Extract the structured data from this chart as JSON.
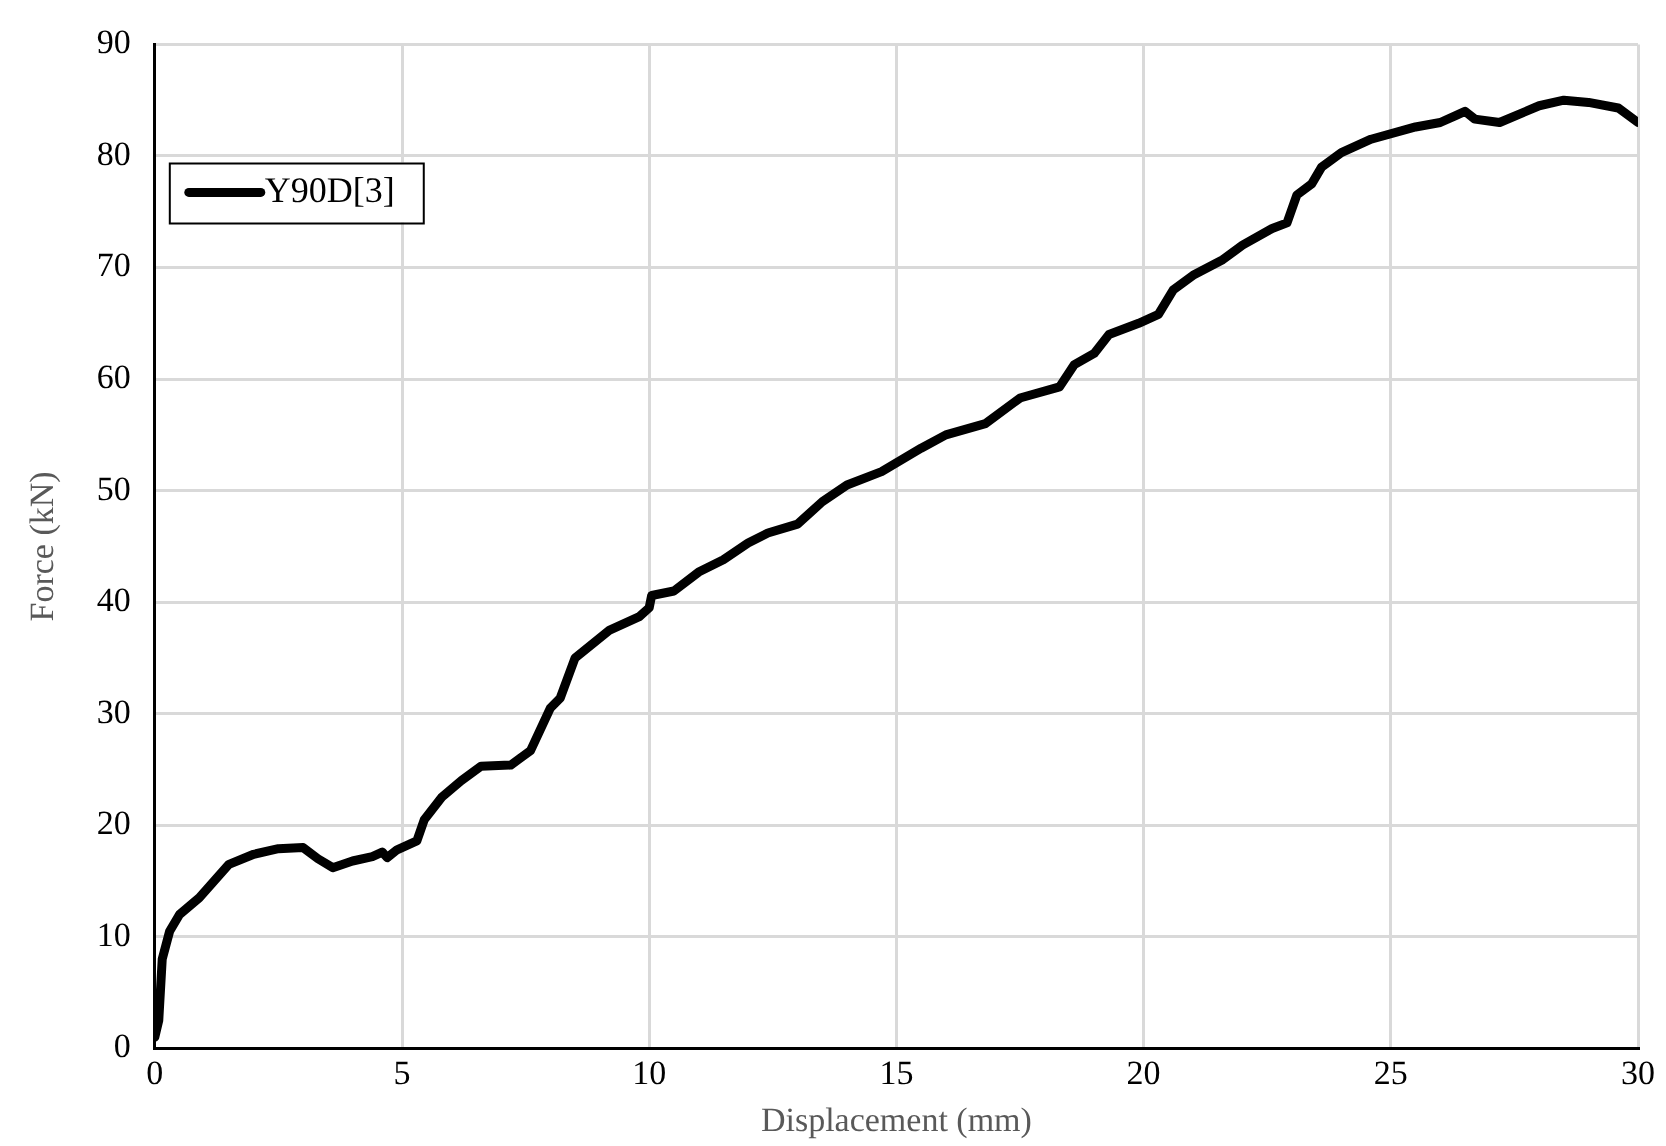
{
  "chart_data": {
    "type": "line",
    "xlabel": "Displacement (mm)",
    "ylabel": "Force (kN)",
    "xlim": [
      0,
      30
    ],
    "xticks": [
      0,
      5,
      10,
      15,
      20,
      25,
      30
    ],
    "ylim": [
      0,
      90
    ],
    "yticks": [
      0,
      10,
      20,
      30,
      40,
      50,
      60,
      70,
      80,
      90
    ],
    "grid": true,
    "legend": "top left",
    "marker": "none",
    "line_style": "solid",
    "series": [
      {
        "name": "Y90D[3]",
        "color": "#000000",
        "x": [
          0,
          0.08,
          0.15,
          0.3,
          0.5,
          0.9,
          1.2,
          1.5,
          2,
          2.5,
          3,
          3.3,
          3.6,
          4,
          4.4,
          4.6,
          4.7,
          4.9,
          5.3,
          5.45,
          5.8,
          6.2,
          6.6,
          7.2,
          7.6,
          8,
          8.2,
          8.5,
          9.2,
          9.8,
          10,
          10.05,
          10.5,
          11,
          11.5,
          12,
          12.4,
          13,
          13.5,
          14,
          14.7,
          15.5,
          16,
          16.8,
          17.5,
          18.3,
          18.6,
          19,
          19.3,
          19.9,
          20.3,
          20.6,
          21,
          21.6,
          22,
          22.6,
          22.9,
          23.1,
          23.4,
          23.6,
          24,
          24.6,
          25.5,
          26,
          26.3,
          26.5,
          26.7,
          27.2,
          28,
          28.5,
          29,
          29.6,
          30
        ],
        "values": [
          1,
          2.5,
          8,
          10.5,
          12,
          13.5,
          15,
          16.5,
          17.4,
          17.9,
          18,
          17,
          16.2,
          16.8,
          17.2,
          17.6,
          17.1,
          17.8,
          18.6,
          20.5,
          22.5,
          24,
          25.3,
          25.4,
          26.7,
          30.5,
          31.4,
          35,
          37.5,
          38.7,
          39.5,
          40.6,
          41,
          42.7,
          43.8,
          45.3,
          46.2,
          47,
          49,
          50.5,
          51.7,
          53.8,
          55,
          56,
          58.3,
          59.3,
          61.3,
          62.3,
          64,
          65,
          65.8,
          68,
          69.3,
          70.7,
          72,
          73.5,
          74,
          76.5,
          77.5,
          79,
          80.3,
          81.5,
          82.6,
          83,
          83.6,
          84,
          83.3,
          83,
          84.5,
          85,
          84.8,
          84.3,
          83
        ]
      }
    ]
  }
}
